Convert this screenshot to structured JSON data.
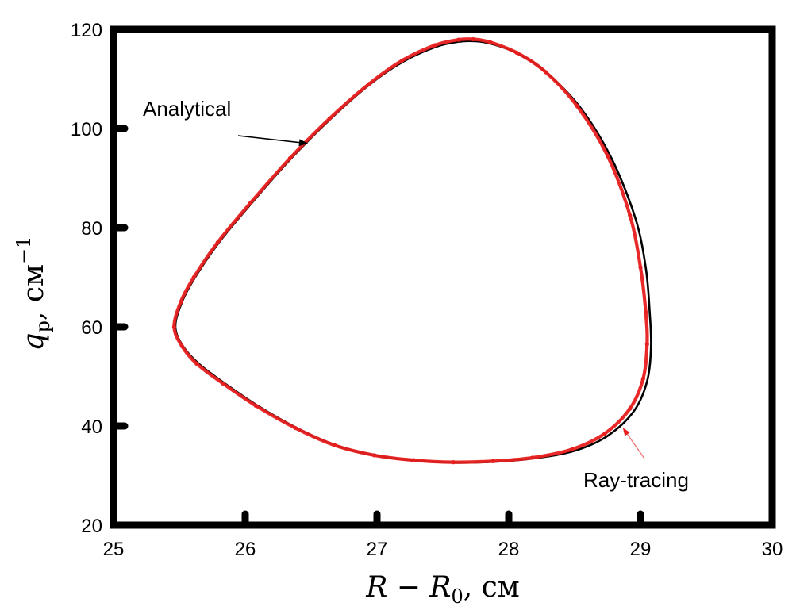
{
  "chart_data": {
    "type": "line",
    "title": "",
    "xlabel": {
      "main": "R − R",
      "sub": "0",
      "unit": ", см"
    },
    "ylabel": {
      "main": "q",
      "sub": "p",
      "unit": ", см",
      "sup": "−1"
    },
    "xlim": [
      25,
      30
    ],
    "ylim": [
      20,
      120
    ],
    "xticks": [
      25,
      26,
      27,
      28,
      29,
      30
    ],
    "xtick_labels": [
      "25",
      "26",
      "27",
      "28",
      "29",
      "30"
    ],
    "yticks": [
      20,
      40,
      60,
      80,
      100,
      120
    ],
    "ytick_labels": [
      "20",
      "40",
      "60",
      "80",
      "100",
      "120"
    ],
    "grid": false,
    "series": [
      {
        "name": "Analytical",
        "color": "#000000",
        "x": [
          25.47,
          25.52,
          25.62,
          25.8,
          26.05,
          26.35,
          26.65,
          26.95,
          27.2,
          27.45,
          27.62,
          27.75,
          27.88,
          28.08,
          28.3,
          28.55,
          28.78,
          28.96,
          29.04,
          29.07,
          29.08,
          29.05,
          28.95,
          28.75,
          28.5,
          28.2,
          27.9,
          27.6,
          27.3,
          27.0,
          26.7,
          26.4,
          26.1,
          25.85,
          25.65,
          25.53,
          25.47
        ],
        "y": [
          60,
          65,
          70,
          77,
          85,
          94,
          102,
          109,
          113.5,
          116.5,
          117.5,
          117.6,
          117.0,
          115.0,
          111.0,
          104.0,
          94.0,
          82.0,
          72.0,
          63.0,
          56.0,
          49.0,
          43.0,
          38.0,
          35.0,
          33.5,
          32.8,
          32.6,
          33.0,
          34.0,
          36.0,
          39.5,
          44.0,
          48.5,
          52.5,
          56.0,
          60.0
        ]
      },
      {
        "name": "Ray-tracing",
        "color": "#e81f1f",
        "x": [
          25.46,
          25.51,
          25.61,
          25.79,
          26.04,
          26.34,
          26.64,
          26.94,
          27.19,
          27.44,
          27.62,
          27.73,
          27.86,
          28.06,
          28.28,
          28.52,
          28.75,
          28.92,
          29.0,
          29.04,
          29.05,
          29.02,
          28.92,
          28.73,
          28.48,
          28.18,
          27.88,
          27.58,
          27.28,
          26.98,
          26.68,
          26.38,
          26.08,
          25.83,
          25.63,
          25.52,
          25.46
        ],
        "y": [
          60,
          65,
          70,
          77,
          85,
          94,
          102,
          109,
          113.7,
          116.8,
          117.9,
          118.0,
          117.4,
          115.3,
          111.4,
          104.5,
          94.5,
          82.5,
          72.0,
          63.0,
          56.5,
          49.5,
          43.5,
          38.5,
          35.3,
          33.6,
          32.9,
          32.7,
          33.1,
          34.1,
          36.1,
          39.6,
          44.1,
          48.6,
          52.6,
          56.1,
          60.0
        ]
      }
    ],
    "annotations": [
      {
        "text": "Analytical",
        "series": "Analytical",
        "target": [
          26.47,
          97.0
        ]
      },
      {
        "text": "Ray-tracing",
        "series": "Ray-tracing",
        "target": [
          28.87,
          39.5
        ]
      }
    ]
  }
}
